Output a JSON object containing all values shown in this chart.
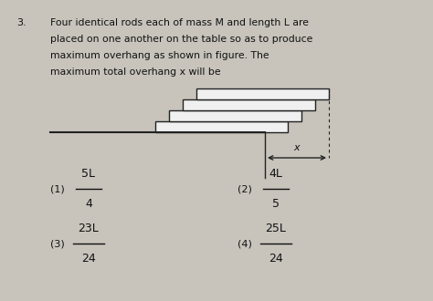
{
  "bg_color": "#c8c4bc",
  "text_color": "#111111",
  "question_num": "3.",
  "lines": [
    "Four identical rods each of mass M and length L are",
    "placed on one another on the table so as to produce",
    "maximum overhang as shown in figure. The",
    "maximum total overhang x will be"
  ],
  "rod_color": "#f0f0f0",
  "rod_edge_color": "#222222",
  "options": [
    {
      "num": "(1)",
      "numer": "5L",
      "denom": "4"
    },
    {
      "num": "(2)",
      "numer": "4L",
      "denom": "5"
    },
    {
      "num": "(3)",
      "numer": "23L",
      "denom": "24"
    },
    {
      "num": "(4)",
      "numer": "25L",
      "denom": "24"
    }
  ]
}
